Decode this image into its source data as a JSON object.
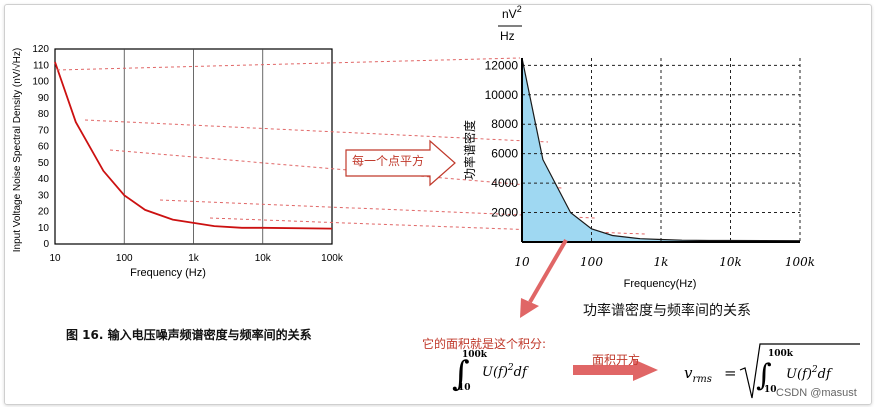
{
  "left_chart": {
    "ylabel": "Input Voltage Noise Spectral Density (nV/√Hz)",
    "xlabel": "Frequency (Hz)",
    "yticks": [
      "0",
      "10",
      "20",
      "30",
      "40",
      "50",
      "60",
      "70",
      "80",
      "90",
      "100",
      "110",
      "120"
    ],
    "xticks": [
      "10",
      "100",
      "1k",
      "10k",
      "100k"
    ]
  },
  "right_chart": {
    "yunit_num": "nV",
    "yunit_sup": "2",
    "yunit_den": "Hz",
    "ylabel": "功率谱密度",
    "xlabel": "Frequency(Hz)",
    "yticks": [
      "2000",
      "4000",
      "6000",
      "8000",
      "10000",
      "12000"
    ],
    "xticks": [
      "10",
      "100",
      "1k",
      "10k",
      "100k"
    ],
    "title": "功率谱密度与频率间的关系"
  },
  "figure_caption": "图 16. 输入电压噪声频谱密度与频率间的关系",
  "arrow_label": "每一个点平方",
  "annotation_area": "它的面积就是这个积分:",
  "annotation_sqrt": "面积开方",
  "integral": {
    "upper": "100k",
    "lower": "10",
    "integrand": "U(f)",
    "power": "2",
    "diff": "df",
    "vrms": "v",
    "vrms_sub": "rms",
    "eq": "="
  },
  "watermark": "CSDN @masust",
  "colors": {
    "curve": "#cc1111",
    "fill": "#9fd8f2",
    "arrow": "#e06666",
    "grid": "#222"
  },
  "chart_data": [
    {
      "type": "line",
      "x": [
        10,
        20,
        50,
        100,
        200,
        500,
        1000,
        2000,
        5000,
        10000,
        100000
      ],
      "values": [
        112,
        75,
        45,
        30,
        21,
        15,
        13,
        11,
        10,
        10,
        9.5
      ],
      "ylim": [
        0,
        120
      ],
      "xscale": "log"
    },
    {
      "type": "area",
      "x": [
        10,
        20,
        50,
        100,
        200,
        500,
        1000,
        2000,
        5000,
        10000,
        100000
      ],
      "values": [
        12500,
        5600,
        2000,
        900,
        440,
        225,
        169,
        121,
        100,
        100,
        90
      ],
      "ylim": [
        0,
        12500
      ],
      "xscale": "log"
    }
  ]
}
